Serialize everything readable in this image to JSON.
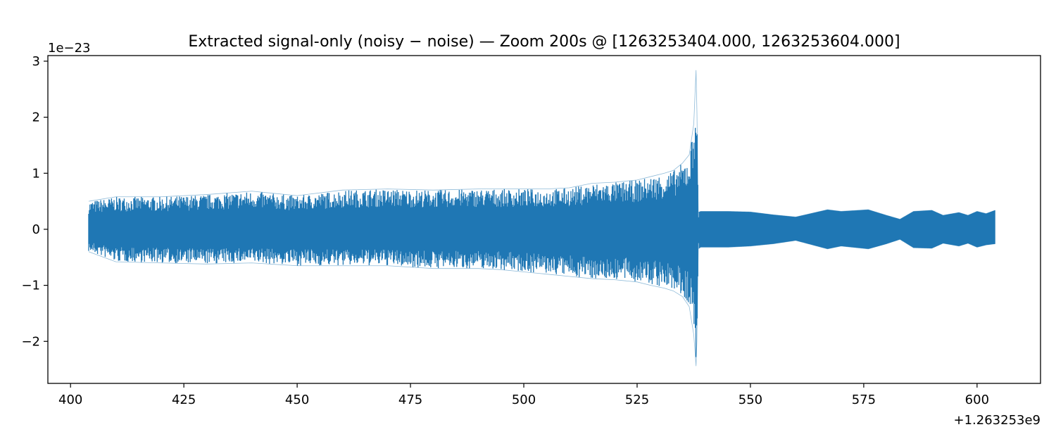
{
  "chart_data": {
    "type": "line",
    "title": "Extracted signal-only (noisy − noise) — Zoom 200s @ [1263253404.000, 1263253604.000]",
    "xlabel": "",
    "ylabel": "",
    "x_offset_label": "+1.263253e9",
    "y_scale_label": "1e−23",
    "xlim": [
      395,
      614
    ],
    "ylim": [
      -2.75,
      3.1
    ],
    "x_ticks": [
      400,
      425,
      450,
      475,
      500,
      525,
      550,
      575,
      600
    ],
    "x_tick_labels": [
      "400",
      "425",
      "450",
      "475",
      "500",
      "525",
      "550",
      "575",
      "600"
    ],
    "y_ticks": [
      -2,
      -1,
      0,
      1,
      2,
      3
    ],
    "y_tick_labels": [
      "−2",
      "−1",
      "0",
      "1",
      "2",
      "3"
    ],
    "grid": false,
    "legend": "none",
    "color": "#1f77b4",
    "series": [
      {
        "x": [
          404.0,
          410.0,
          420.0,
          430.0,
          440.0,
          450.0,
          460.0,
          470.0,
          480.0,
          490.0,
          495.0,
          500.0,
          505.0,
          510.0,
          515.0,
          520.0,
          525.0,
          528.0,
          531.0,
          533.0,
          535.0,
          536.5,
          537.5,
          538.0,
          538.2,
          538.5,
          539.0,
          545.0,
          550.0,
          555.0,
          560.0,
          567.0,
          570.0,
          576.0,
          580.0,
          583.0,
          586.0,
          590.0,
          592.5,
          596.0,
          598.0,
          600.0,
          602.0,
          604.0
        ],
        "upper": [
          0.5,
          0.58,
          0.58,
          0.62,
          0.68,
          0.6,
          0.7,
          0.72,
          0.7,
          0.72,
          0.72,
          0.72,
          0.72,
          0.74,
          0.82,
          0.84,
          0.88,
          0.94,
          1.0,
          1.05,
          1.18,
          1.33,
          1.88,
          2.84,
          2.1,
          0.3,
          0.32,
          0.32,
          0.31,
          0.26,
          0.22,
          0.35,
          0.32,
          0.35,
          0.25,
          0.18,
          0.32,
          0.34,
          0.25,
          0.3,
          0.25,
          0.32,
          0.28,
          0.34
        ],
        "lower": [
          -0.4,
          -0.58,
          -0.6,
          -0.62,
          -0.6,
          -0.65,
          -0.65,
          -0.65,
          -0.7,
          -0.7,
          -0.72,
          -0.76,
          -0.8,
          -0.84,
          -0.88,
          -0.9,
          -0.94,
          -1.0,
          -1.05,
          -1.1,
          -1.2,
          -1.38,
          -1.88,
          -2.44,
          -2.0,
          -0.35,
          -0.32,
          -0.32,
          -0.3,
          -0.26,
          -0.2,
          -0.35,
          -0.3,
          -0.35,
          -0.26,
          -0.18,
          -0.33,
          -0.34,
          -0.25,
          -0.3,
          -0.25,
          -0.32,
          -0.28,
          -0.26
        ]
      }
    ]
  }
}
